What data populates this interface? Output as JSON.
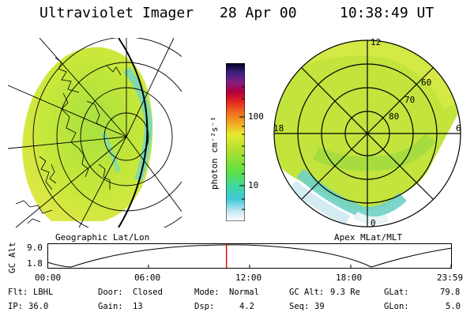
{
  "header": {
    "instrument": "Ultraviolet Imager",
    "date": "28 Apr 00",
    "time": "10:38:49 UT"
  },
  "left_panel": {
    "label": "Geographic Lat/Lon"
  },
  "colorbar": {
    "unit": "photon cm⁻²s⁻¹",
    "ticks": [
      "100",
      "10"
    ],
    "scale": "log"
  },
  "right_panel": {
    "label": "Apex MLat/MLT",
    "mlt_labels": {
      "top": "12",
      "left": "18",
      "right": "6",
      "bottom": "0"
    },
    "lat_labels": [
      "60",
      "70",
      "80"
    ]
  },
  "altitude_plot": {
    "ylabel": "GC Alt",
    "yticks": [
      "9.0",
      "1.8"
    ],
    "xticks": [
      "00:00",
      "06:00",
      "12:00",
      "18:00",
      "23:59"
    ],
    "current_time_fraction": 0.4436
  },
  "status": {
    "filter_label": "Flt:",
    "filter_value": "LBHL",
    "ip_label": "IP:",
    "ip_value": "36.0",
    "door_label": "Door:",
    "door_value": "Closed",
    "gain_label": "Gain:",
    "gain_value": "13",
    "mode_label": "Mode:",
    "mode_value": "Normal",
    "dsp_label": "Dsp:",
    "dsp_value": "4.2",
    "gcalt_label": "GC Alt:",
    "gcalt_value": "9.3 Re",
    "seq_label": "Seq:",
    "seq_value": "39",
    "glat_label": "GLat:",
    "glat_value": "79.8",
    "glon_label": "GLon:",
    "glon_value": "5.0"
  },
  "colors": {
    "accent_red": "#e00000"
  }
}
